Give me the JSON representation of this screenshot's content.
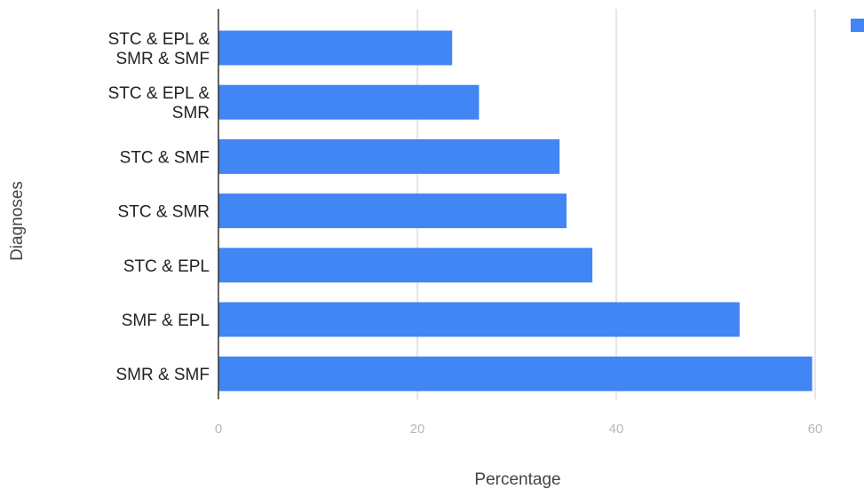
{
  "chart_data": {
    "type": "bar",
    "orientation": "horizontal",
    "categories": [
      "STC & EPL & SMR & SMF",
      "STC & EPL & SMR",
      "STC & SMF",
      "STC & SMR",
      "STC & EPL",
      "SMF & EPL",
      "SMR & SMF"
    ],
    "category_label_lines": [
      [
        "STC & EPL &",
        "SMR & SMF"
      ],
      [
        "STC & EPL &",
        "SMR"
      ],
      [
        "STC & SMF"
      ],
      [
        "STC & SMR"
      ],
      [
        "STC & EPL"
      ],
      [
        "SMF & EPL"
      ],
      [
        "SMR & SMF"
      ]
    ],
    "values": [
      23.5,
      26.2,
      34.3,
      35.0,
      37.6,
      52.4,
      59.7
    ],
    "xlabel": "Percentage",
    "ylabel": "Diagnoses",
    "xlim": [
      0,
      60
    ],
    "xticks": [
      0,
      20,
      40,
      60
    ],
    "xtick_labels": [
      "0",
      "20",
      "40",
      "60"
    ],
    "grid": "vertical",
    "legend": {
      "position": "top-right",
      "entries": [
        ""
      ]
    },
    "colors": {
      "bar": "#4285f4",
      "grid": "#cccccc",
      "axis": "#333333"
    }
  }
}
